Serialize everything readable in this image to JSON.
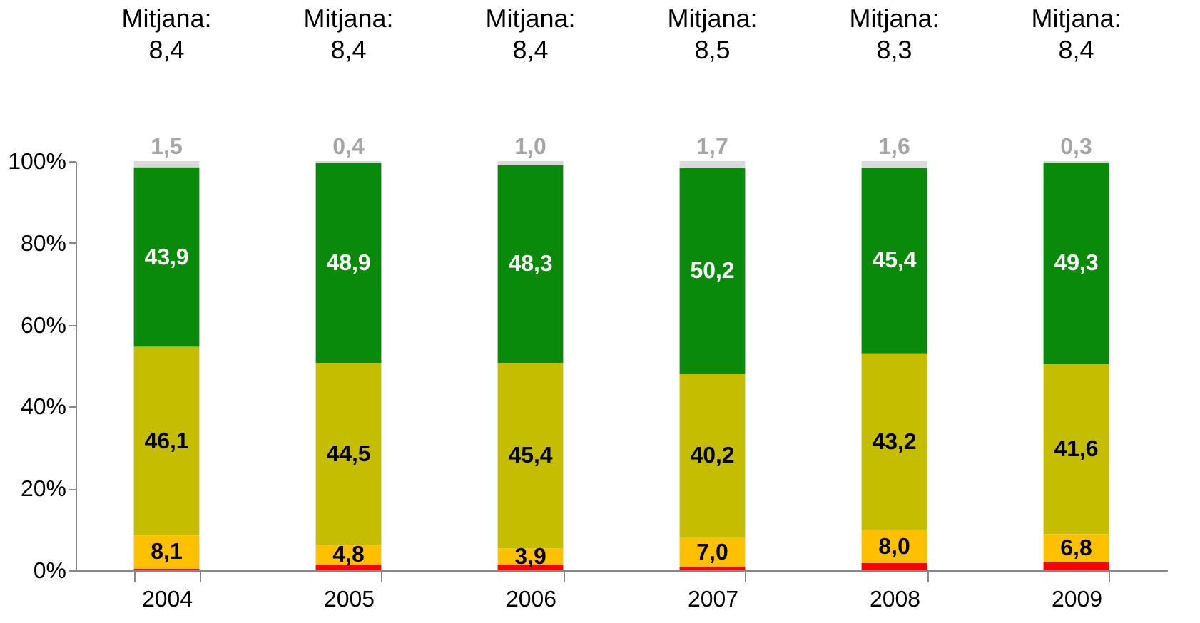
{
  "chart_data": {
    "type": "bar",
    "stacked": true,
    "categories": [
      "2004",
      "2005",
      "2006",
      "2007",
      "2008",
      "2009"
    ],
    "series": [
      {
        "color": "#ff0000",
        "values": [
          0.4,
          1.4,
          1.4,
          0.9,
          1.8,
          2.0
        ],
        "value_labels": [
          null,
          null,
          null,
          null,
          null,
          null
        ]
      },
      {
        "color": "#ffc000",
        "values": [
          8.1,
          4.8,
          3.9,
          7.0,
          8.0,
          6.8
        ],
        "value_labels": [
          "8,1",
          "4,8",
          "3,9",
          "7,0",
          "8,0",
          "6,8"
        ]
      },
      {
        "color": "#c4bd00",
        "values": [
          46.1,
          44.5,
          45.4,
          40.2,
          43.2,
          41.6
        ],
        "value_labels": [
          "46,1",
          "44,5",
          "45,4",
          "40,2",
          "43,2",
          "41,6"
        ]
      },
      {
        "color": "#0a8a0a",
        "values": [
          43.9,
          48.9,
          48.3,
          50.2,
          45.4,
          49.3
        ],
        "value_labels": [
          "43,9",
          "48,9",
          "48,3",
          "50,2",
          "45,4",
          "49,3"
        ]
      },
      {
        "color": "#d9d9d9",
        "values": [
          1.5,
          0.4,
          1.0,
          1.7,
          1.6,
          0.3
        ],
        "value_labels": [
          "1,5",
          "0,4",
          "1,0",
          "1,7",
          "1,6",
          "0,3"
        ]
      }
    ],
    "ylim": [
      0,
      100
    ],
    "yticks": [
      {
        "value": 0,
        "label": "0%"
      },
      {
        "value": 20,
        "label": "20%"
      },
      {
        "value": 40,
        "label": "40%"
      },
      {
        "value": 60,
        "label": "60%"
      },
      {
        "value": 80,
        "label": "80%"
      },
      {
        "value": 100,
        "label": "100%"
      }
    ],
    "grid": false,
    "annotations": [
      "Mitjana:\n8,4",
      "Mitjana:\n8,4",
      "Mitjana:\n8,4",
      "Mitjana:\n8,5",
      "Mitjana:\n8,3",
      "Mitjana:\n8,4"
    ]
  }
}
